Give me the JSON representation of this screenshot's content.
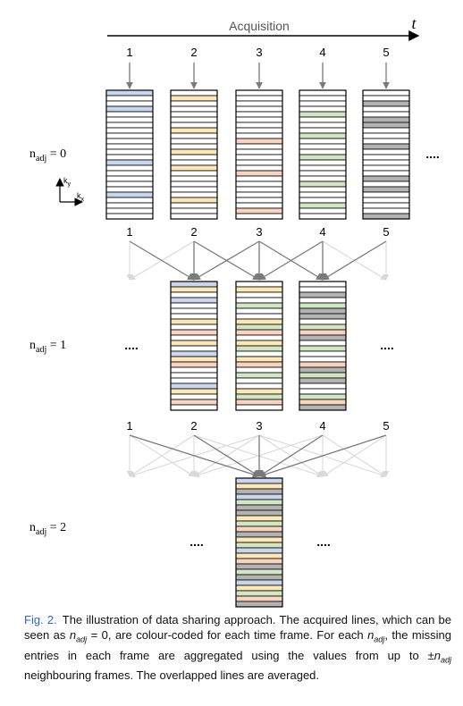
{
  "header": {
    "acquisition_label": "Acquisition",
    "time_label": "t"
  },
  "frame_labels": [
    "1",
    "2",
    "3",
    "4",
    "5"
  ],
  "axes": {
    "ky": "k",
    "ky_sub": "y",
    "kx": "k",
    "kx_sub": "x"
  },
  "colors": {
    "frame1": "#c9d6ee",
    "frame2": "#fbe8b4",
    "frame3": "#f8d3c0",
    "frame4": "#d3e6c4",
    "frame5": "#b3b3b3",
    "arrow_strong": "#7a7a7a",
    "arrow_faint": "#d9d9d9",
    "caption_fig": "#2a6ab8"
  },
  "rows": [
    {
      "label_prefix": "n",
      "label_sub": "adj",
      "label_suffix": " = 0",
      "ellipsis_left": "",
      "ellipsis_right": "....",
      "frames": [
        1,
        2,
        3,
        4,
        5
      ]
    },
    {
      "label_prefix": "n",
      "label_sub": "adj",
      "label_suffix": " = 1",
      "ellipsis_left": "....",
      "ellipsis_right": "....",
      "frames": [
        2,
        3,
        4
      ]
    },
    {
      "label_prefix": "n",
      "label_sub": "adj",
      "label_suffix": " = 2",
      "ellipsis_left": "....",
      "ellipsis_right": "....",
      "frames": [
        3
      ]
    }
  ],
  "caption": {
    "fig_label": "Fig. 2.",
    "text": "The illustration of data sharing approach. The acquired lines, which can be seen as n_adj = 0, are colour-coded for each time frame. For each n_adj, the missing entries in each frame are aggregated using the values from up to ±n_adj neighbouring frames. The overlapped lines are averaged."
  }
}
